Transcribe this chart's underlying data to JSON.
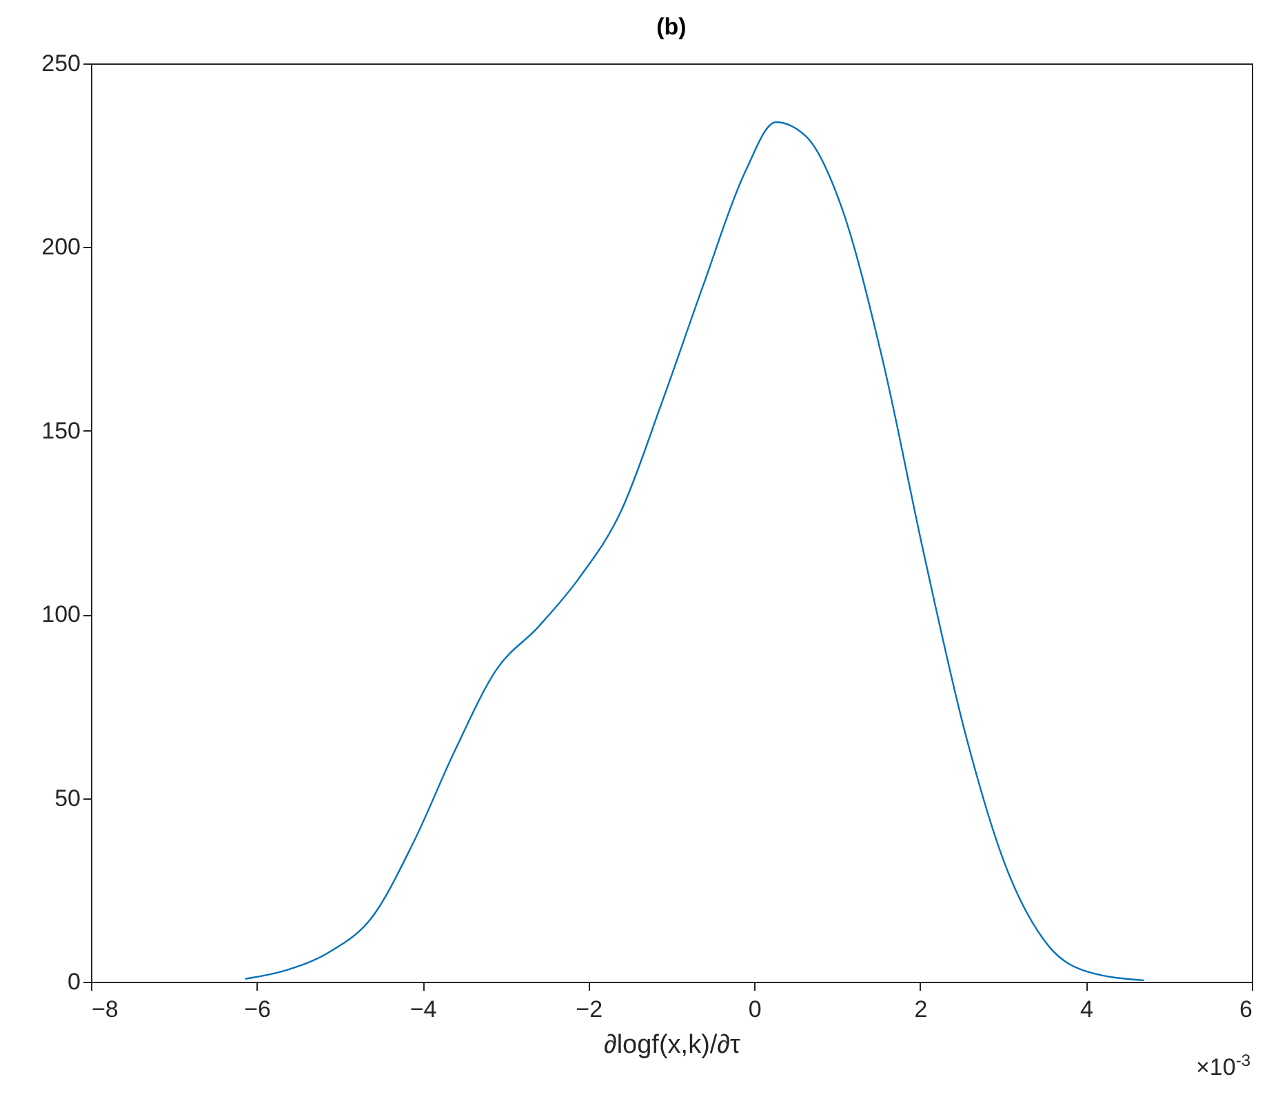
{
  "chart_data": {
    "type": "line",
    "title": "(b)",
    "xlabel": "∂logf(x,k)/∂τ",
    "annotations": [
      "×10$^{-3}$"
    ],
    "x": [
      -6.14,
      -5.61,
      -5.11,
      -4.61,
      -4.11,
      -3.61,
      -3.11,
      -2.61,
      -2.11,
      -1.61,
      -1.11,
      -0.61,
      -0.12,
      0.26,
      0.63,
      1.05,
      1.54,
      2.04,
      2.54,
      3.04,
      3.54,
      4.04,
      4.7
    ],
    "series": [
      {
        "color": "#0072bd",
        "values": [
          0.8,
          3.4,
          8.3,
          17.6,
          38,
          63,
          85,
          96.5,
          110,
          128,
          158,
          190,
          220,
          234,
          230,
          211,
          170,
          117,
          68,
          31,
          10,
          2.6,
          0.4
        ]
      }
    ],
    "xlim": [
      -8,
      6
    ],
    "xticks": [
      -8,
      -6,
      -4,
      -2,
      0,
      2,
      4,
      6
    ],
    "ylim": [
      0,
      250
    ],
    "yticks": [
      0,
      50,
      100,
      150,
      200,
      250
    ],
    "grid": false,
    "marker": "none",
    "line_style": "solid"
  }
}
